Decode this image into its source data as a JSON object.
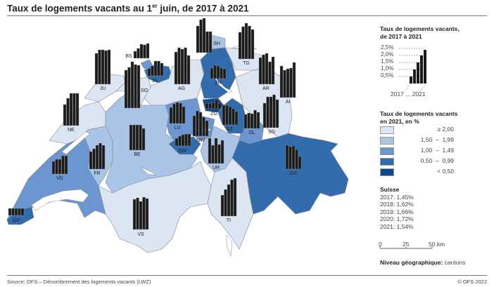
{
  "title": {
    "pre": "Taux de logements vacants au 1",
    "sup": "er",
    "post": " juin, de 2017 à 2021"
  },
  "legend_bars": {
    "title_line1": "Taux de logements vacants,",
    "title_line2": "de 2017 à 2021",
    "ticks": [
      "2,5%",
      "2,0%",
      "1,5%",
      "1,0%",
      "0,5%"
    ],
    "example_values": [
      0.5,
      1.0,
      1.5,
      2.0,
      2.4
    ],
    "years_label": "2017 ... 2021"
  },
  "legend_classes": {
    "title_line1": "Taux de logements vacants",
    "title_line2": "en 2021, en %",
    "classes": [
      {
        "label": "≥ 2,00",
        "color": "#dbe5f4"
      },
      {
        "label": "1,50  –  1,99",
        "color": "#a9c4e7"
      },
      {
        "label": "1,00  –  1,49",
        "color": "#6b96cf"
      },
      {
        "label": "0,50  –  0,99",
        "color": "#336cad"
      },
      {
        "label": "< 0,50",
        "color": "#0c4a8c"
      }
    ]
  },
  "suisse": {
    "title": "Suisse",
    "lines": [
      "2017: 1,45%",
      "2018: 1,62%",
      "2019: 1,66%",
      "2020: 1,72%",
      "2021: 1,54%"
    ]
  },
  "scale": {
    "labels": [
      "0",
      "25",
      "50 km"
    ]
  },
  "level": {
    "label": "Niveau géographique:",
    "value": " cantons"
  },
  "footer": {
    "source": "Source: OFS – Dénombrement des logements vacants (LWZ)",
    "copyright": "© OFS 2022"
  },
  "chart_data": {
    "type": "map",
    "years": [
      2017,
      2018,
      2019,
      2020,
      2021
    ],
    "unit": "%",
    "cantons": [
      {
        "code": "JU",
        "values": [
          2.2,
          2.45,
          2.45,
          2.4,
          2.45
        ]
      },
      {
        "code": "BS",
        "values": [
          0.5,
          0.7,
          1.0,
          0.95,
          1.05
        ]
      },
      {
        "code": "BL",
        "values": [
          0.5,
          0.7,
          1.05,
          1.05,
          0.9
        ]
      },
      {
        "code": "SO",
        "values": [
          2.7,
          2.9,
          3.3,
          3.1,
          3.05
        ]
      },
      {
        "code": "NE",
        "values": [
          1.5,
          1.95,
          2.3,
          2.3,
          2.3
        ]
      },
      {
        "code": "AG",
        "values": [
          2.3,
          2.6,
          2.5,
          2.6,
          2.05
        ]
      },
      {
        "code": "LU",
        "values": [
          1.15,
          1.4,
          1.5,
          1.45,
          1.2
        ]
      },
      {
        "code": "BE",
        "values": [
          1.8,
          1.8,
          1.8,
          1.8,
          1.55
        ]
      },
      {
        "code": "FR",
        "values": [
          1.25,
          1.45,
          1.7,
          1.85,
          1.7
        ]
      },
      {
        "code": "VD",
        "values": [
          0.9,
          1.05,
          1.05,
          1.3,
          1.3
        ]
      },
      {
        "code": "GE",
        "values": [
          0.5,
          0.5,
          0.5,
          0.5,
          0.5
        ]
      },
      {
        "code": "VS",
        "values": [
          2.15,
          2.25,
          2.0,
          2.3,
          2.2
        ]
      },
      {
        "code": "TI",
        "values": [
          1.5,
          1.9,
          2.25,
          2.6,
          2.7
        ]
      },
      {
        "code": "GR",
        "values": [
          1.7,
          1.6,
          1.65,
          1.4,
          0.9
        ]
      },
      {
        "code": "UR",
        "values": [
          1.8,
          1.3,
          1.8,
          1.35,
          1.65
        ]
      },
      {
        "code": "SH",
        "values": [
          1.9,
          2.35,
          2.45,
          1.5,
          1.5
        ]
      },
      {
        "code": "ZH",
        "values": [
          0.75,
          0.95,
          0.9,
          0.75,
          0.7
        ]
      },
      {
        "code": "TG",
        "values": [
          1.9,
          2.3,
          2.55,
          2.35,
          2.1
        ]
      },
      {
        "code": "AR",
        "values": [
          1.9,
          2.1,
          2.2,
          1.6,
          1.95
        ]
      },
      {
        "code": "AI",
        "values": [
          2.25,
          1.95,
          2.05,
          2.1,
          2.5
        ]
      },
      {
        "code": "SG",
        "values": [
          1.75,
          2.2,
          2.2,
          2.35,
          2.0
        ]
      },
      {
        "code": "GL",
        "values": [
          1.0,
          1.1,
          1.05,
          1.3,
          1.15
        ]
      },
      {
        "code": "SZ",
        "values": [
          1.4,
          1.4,
          1.3,
          1.15,
          0.95
        ]
      },
      {
        "code": "ZG",
        "values": [
          0.4,
          0.4,
          0.45,
          0.65,
          0.4
        ]
      },
      {
        "code": "NW",
        "values": [
          1.45,
          1.8,
          1.7,
          1.35,
          1.1
        ]
      },
      {
        "code": "OW",
        "values": [
          0.55,
          0.7,
          0.8,
          0.85,
          0.85
        ]
      }
    ]
  }
}
